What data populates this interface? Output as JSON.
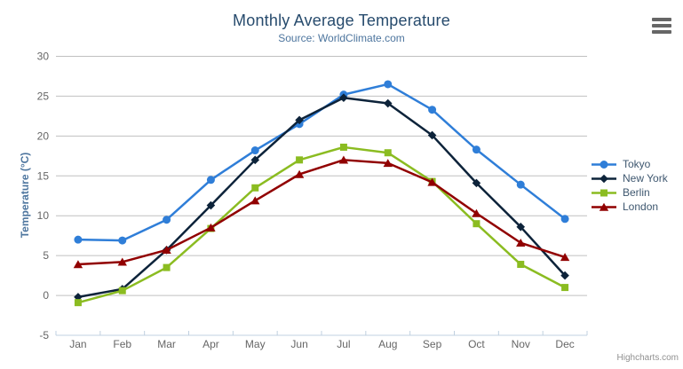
{
  "header": {
    "title": "Monthly Average Temperature",
    "subtitle": "Source: WorldClimate.com"
  },
  "credits": {
    "label": "Highcharts.com"
  },
  "export_menu": {
    "icon": "hamburger-menu-icon"
  },
  "chart_data": {
    "type": "line",
    "title": "Monthly Average Temperature",
    "subtitle": "Source: WorldClimate.com",
    "xlabel": "",
    "ylabel": "Temperature (°C)",
    "categories": [
      "Jan",
      "Feb",
      "Mar",
      "Apr",
      "May",
      "Jun",
      "Jul",
      "Aug",
      "Sep",
      "Oct",
      "Nov",
      "Dec"
    ],
    "ylim": [
      -5,
      30
    ],
    "ytick_interval": 5,
    "grid": true,
    "legend_position": "right",
    "series": [
      {
        "name": "Tokyo",
        "color": "#2f7ed8",
        "marker": "circle",
        "values": [
          7.0,
          6.9,
          9.5,
          14.5,
          18.2,
          21.5,
          25.2,
          26.5,
          23.3,
          18.3,
          13.9,
          9.6
        ]
      },
      {
        "name": "New York",
        "color": "#0d233a",
        "marker": "diamond",
        "values": [
          -0.2,
          0.8,
          5.7,
          11.3,
          17.0,
          22.0,
          24.8,
          24.1,
          20.1,
          14.1,
          8.6,
          2.5
        ]
      },
      {
        "name": "Berlin",
        "color": "#8bbc21",
        "marker": "square",
        "values": [
          -0.9,
          0.6,
          3.5,
          8.4,
          13.5,
          17.0,
          18.6,
          17.9,
          14.3,
          9.0,
          3.9,
          1.0
        ]
      },
      {
        "name": "London",
        "color": "#910000",
        "marker": "triangle",
        "values": [
          3.9,
          4.2,
          5.7,
          8.5,
          11.9,
          15.2,
          17.0,
          16.6,
          14.2,
          10.3,
          6.6,
          4.8
        ]
      }
    ],
    "colors": {
      "grid": "#c0c0c0",
      "axis_line": "#c0d0e0",
      "axis_labels": "#666666",
      "axis_title": "#4d759e",
      "title": "#274b6d",
      "subtitle": "#4d759e",
      "legend_text": "#3e576f",
      "credits": "#909090",
      "export_icon": "#666666"
    }
  }
}
